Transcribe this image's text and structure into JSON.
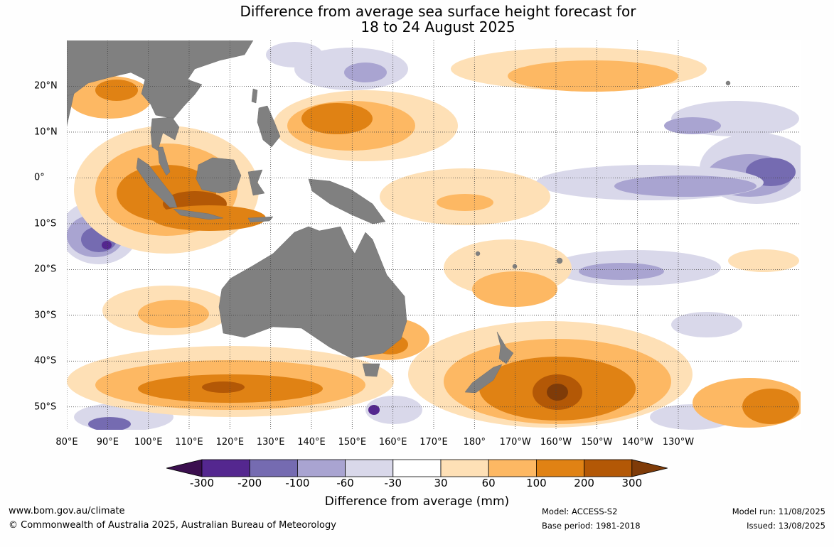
{
  "title": {
    "line1": "Difference from average sea surface height forecast for",
    "line2": "18 to 24 August 2025"
  },
  "map": {
    "projection": "equirectangular",
    "lon_range": [
      80,
      260
    ],
    "lat_range": [
      -55,
      30
    ],
    "land_color": "#808080",
    "ocean_color": "#ffffff",
    "gridlines": true,
    "lon_labels": [
      "80°E",
      "90°E",
      "100°E",
      "110°E",
      "120°E",
      "130°E",
      "140°E",
      "150°E",
      "160°E",
      "170°E",
      "180°",
      "170°W",
      "160°W",
      "150°W",
      "140°W",
      "130°W"
    ],
    "lat_labels": [
      "20°N",
      "10°N",
      "0°",
      "10°S",
      "20°S",
      "30°S",
      "40°S",
      "50°S"
    ],
    "lat_values": [
      20,
      10,
      0,
      -10,
      -20,
      -30,
      -40,
      -50
    ],
    "lon_values": [
      80,
      90,
      100,
      110,
      120,
      130,
      140,
      150,
      160,
      170,
      180,
      190,
      200,
      210,
      220,
      230
    ]
  },
  "colorbar": {
    "tick_labels": [
      "-300",
      "-200",
      "-100",
      "-60",
      "-30",
      "30",
      "60",
      "100",
      "200",
      "300"
    ],
    "colors": [
      "#3b0f4f",
      "#54278f",
      "#756bb1",
      "#a9a4d1",
      "#d9d8ea",
      "#ffffff",
      "#fee0b6",
      "#fdb863",
      "#e08214",
      "#b35806",
      "#7f3b08"
    ],
    "label": "Difference from average (mm)"
  },
  "footer": {
    "website": "www.bom.gov.au/climate",
    "copyright": "© Commonwealth of Australia 2025, Australian Bureau of Meteorology",
    "model": "Model: ACCESS-S2",
    "base_period": "Base period: 1981-2018",
    "model_run": "Model run: 11/08/2025",
    "issued": "Issued: 13/08/2025"
  }
}
